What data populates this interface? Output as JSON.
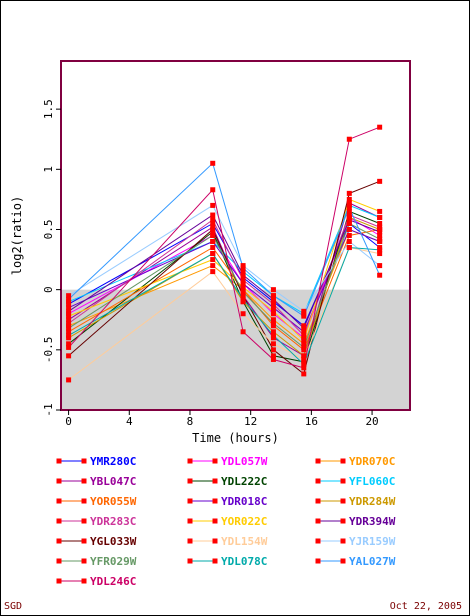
{
  "chart_data": {
    "type": "line",
    "xlabel": "Time (hours)",
    "ylabel": "log2(ratio)",
    "xlim": [
      -0.5,
      22.5
    ],
    "ylim": [
      -1,
      1.9
    ],
    "xticks": [
      0,
      4,
      8,
      12,
      16,
      20
    ],
    "xtick_labels": [
      "0",
      "4",
      "8",
      "12",
      "16",
      "20"
    ],
    "yticks": [
      -1,
      -0.5,
      0,
      0.5,
      1,
      1.5
    ],
    "ytick_labels": [
      "-1",
      "-0.5",
      "0",
      "0.5",
      "1",
      "1.5"
    ],
    "negative_region_color": "#d3d3d3",
    "plot_border_color": "#800040",
    "marker_color": "#ff0000",
    "x": [
      0,
      9.5,
      11.5,
      13.5,
      15.5,
      18.5,
      20.5
    ],
    "series": [
      {
        "name": "YMR280C",
        "color": "#0000ff",
        "values": [
          -0.12,
          0.55,
          0.1,
          -0.1,
          -0.3,
          0.55,
          0.35
        ]
      },
      {
        "name": "YDL057W",
        "color": "#ff00ff",
        "values": [
          -0.2,
          0.45,
          0.05,
          -0.2,
          -0.4,
          0.6,
          0.45
        ]
      },
      {
        "name": "YDR070C",
        "color": "#ff9900",
        "values": [
          -0.3,
          0.2,
          0.0,
          -0.25,
          -0.45,
          0.5,
          0.4
        ]
      },
      {
        "name": "YBL047C",
        "color": "#990099",
        "values": [
          -0.25,
          0.52,
          -0.05,
          -0.4,
          -0.55,
          0.72,
          0.6
        ]
      },
      {
        "name": "YDL222C",
        "color": "#004400",
        "values": [
          -0.45,
          0.48,
          -0.1,
          -0.55,
          -0.6,
          0.65,
          0.55
        ]
      },
      {
        "name": "YFL060C",
        "color": "#00ccff",
        "values": [
          -0.1,
          0.4,
          0.15,
          -0.05,
          -0.2,
          0.7,
          0.6
        ]
      },
      {
        "name": "YOR055W",
        "color": "#ff6600",
        "values": [
          -0.35,
          0.35,
          0.0,
          -0.3,
          -0.5,
          0.45,
          0.5
        ]
      },
      {
        "name": "YDR018C",
        "color": "#6600cc",
        "values": [
          -0.15,
          0.4,
          0.05,
          -0.15,
          -0.35,
          0.5,
          0.4
        ]
      },
      {
        "name": "YDR284W",
        "color": "#cc9900",
        "values": [
          -0.4,
          0.3,
          -0.1,
          -0.35,
          -0.55,
          0.6,
          0.5
        ]
      },
      {
        "name": "YDR283C",
        "color": "#cc3399",
        "values": [
          -0.28,
          0.58,
          0.08,
          -0.12,
          -0.38,
          0.62,
          0.52
        ]
      },
      {
        "name": "YOR022C",
        "color": "#ffcc00",
        "values": [
          -0.22,
          0.25,
          0.02,
          -0.18,
          -0.42,
          0.75,
          0.65
        ]
      },
      {
        "name": "YDR394W",
        "color": "#660099",
        "values": [
          -0.18,
          0.62,
          0.12,
          -0.08,
          -0.32,
          0.58,
          0.48
        ]
      },
      {
        "name": "YGL033W",
        "color": "#660000",
        "values": [
          -0.55,
          0.5,
          -0.05,
          -0.5,
          -0.7,
          0.8,
          0.9
        ]
      },
      {
        "name": "YDL154W",
        "color": "#ffcc99",
        "values": [
          -0.75,
          0.15,
          -0.2,
          -0.45,
          -0.58,
          0.35,
          0.3
        ]
      },
      {
        "name": "YJR159W",
        "color": "#99ccff",
        "values": [
          -0.05,
          0.7,
          0.2,
          0.0,
          -0.18,
          0.4,
          0.2
        ]
      },
      {
        "name": "YFR029W",
        "color": "#669966",
        "values": [
          -0.32,
          0.45,
          -0.02,
          -0.28,
          -0.48,
          0.55,
          0.42
        ]
      },
      {
        "name": "YDL078C",
        "color": "#00aaaa",
        "values": [
          -0.38,
          0.3,
          -0.08,
          -0.38,
          -0.62,
          0.35,
          0.33
        ]
      },
      {
        "name": "YAL027W",
        "color": "#3399ff",
        "values": [
          -0.08,
          1.05,
          0.18,
          -0.05,
          -0.22,
          0.68,
          0.12
        ]
      },
      {
        "name": "YDL246C",
        "color": "#cc0066",
        "values": [
          -0.48,
          0.83,
          -0.35,
          -0.58,
          -0.65,
          1.25,
          1.35
        ]
      }
    ]
  },
  "footer": {
    "left": "SGD",
    "right": "Oct 22, 2005"
  }
}
